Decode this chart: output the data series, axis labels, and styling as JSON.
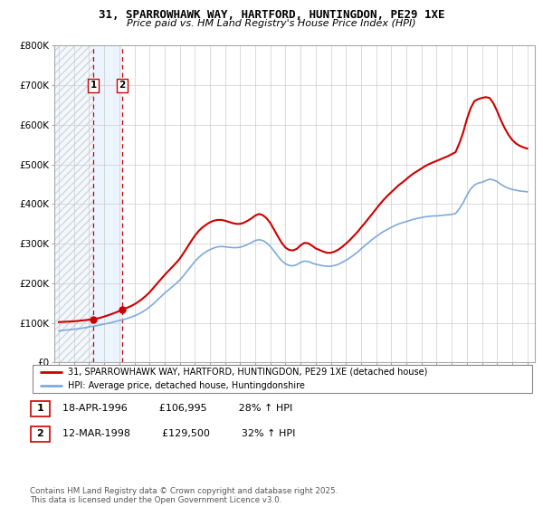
{
  "title": "31, SPARROWHAWK WAY, HARTFORD, HUNTINGDON, PE29 1XE",
  "subtitle": "Price paid vs. HM Land Registry's House Price Index (HPI)",
  "footer": "Contains HM Land Registry data © Crown copyright and database right 2025.\nThis data is licensed under the Open Government Licence v3.0.",
  "legend_line1": "31, SPARROWHAWK WAY, HARTFORD, HUNTINGDON, PE29 1XE (detached house)",
  "legend_line2": "HPI: Average price, detached house, Huntingdonshire",
  "transactions": [
    {
      "label": "1",
      "date": "18-APR-1996",
      "price": "£106,995",
      "hpi": "28% ↑ HPI",
      "x": 1996.29
    },
    {
      "label": "2",
      "date": "12-MAR-1998",
      "price": "£129,500",
      "hpi": "32% ↑ HPI",
      "x": 1998.19
    }
  ],
  "hpi_color": "#7eaadc",
  "price_color": "#cc0000",
  "transaction_color": "#cc0000",
  "ylim": [
    0,
    800000
  ],
  "yticks": [
    0,
    100000,
    200000,
    300000,
    400000,
    500000,
    600000,
    700000,
    800000
  ],
  "ytick_labels": [
    "£0",
    "£100K",
    "£200K",
    "£300K",
    "£400K",
    "£500K",
    "£600K",
    "£700K",
    "£800K"
  ],
  "xmin": 1993.7,
  "xmax": 2025.5,
  "tx1_x": 1996.29,
  "tx2_x": 1998.19,
  "hatch_end": 1996.29,
  "highlight_start": 1996.29,
  "highlight_end": 1998.19,
  "hpi_data_x": [
    1994.0,
    1994.25,
    1994.5,
    1994.75,
    1995.0,
    1995.25,
    1995.5,
    1995.75,
    1996.0,
    1996.25,
    1996.5,
    1996.75,
    1997.0,
    1997.25,
    1997.5,
    1997.75,
    1998.0,
    1998.25,
    1998.5,
    1998.75,
    1999.0,
    1999.25,
    1999.5,
    1999.75,
    2000.0,
    2000.25,
    2000.5,
    2000.75,
    2001.0,
    2001.25,
    2001.5,
    2001.75,
    2002.0,
    2002.25,
    2002.5,
    2002.75,
    2003.0,
    2003.25,
    2003.5,
    2003.75,
    2004.0,
    2004.25,
    2004.5,
    2004.75,
    2005.0,
    2005.25,
    2005.5,
    2005.75,
    2006.0,
    2006.25,
    2006.5,
    2006.75,
    2007.0,
    2007.25,
    2007.5,
    2007.75,
    2008.0,
    2008.25,
    2008.5,
    2008.75,
    2009.0,
    2009.25,
    2009.5,
    2009.75,
    2010.0,
    2010.25,
    2010.5,
    2010.75,
    2011.0,
    2011.25,
    2011.5,
    2011.75,
    2012.0,
    2012.25,
    2012.5,
    2012.75,
    2013.0,
    2013.25,
    2013.5,
    2013.75,
    2014.0,
    2014.25,
    2014.5,
    2014.75,
    2015.0,
    2015.25,
    2015.5,
    2015.75,
    2016.0,
    2016.25,
    2016.5,
    2016.75,
    2017.0,
    2017.25,
    2017.5,
    2017.75,
    2018.0,
    2018.25,
    2018.5,
    2018.75,
    2019.0,
    2019.25,
    2019.5,
    2019.75,
    2020.0,
    2020.25,
    2020.5,
    2020.75,
    2021.0,
    2021.25,
    2021.5,
    2021.75,
    2022.0,
    2022.25,
    2022.5,
    2022.75,
    2023.0,
    2023.25,
    2023.5,
    2023.75,
    2024.0,
    2024.25,
    2024.5,
    2024.75,
    2025.0
  ],
  "hpi_data_y": [
    80000,
    81000,
    82000,
    83000,
    84000,
    85000,
    86500,
    88000,
    90000,
    91500,
    93000,
    95000,
    97000,
    99000,
    101000,
    103500,
    106000,
    108000,
    111000,
    114000,
    117500,
    122000,
    127000,
    133000,
    140000,
    148000,
    157000,
    166000,
    175000,
    183000,
    191000,
    199000,
    208000,
    219000,
    231000,
    243000,
    255000,
    265000,
    273000,
    280000,
    285000,
    289000,
    292000,
    293000,
    292000,
    291000,
    290000,
    290000,
    291000,
    294000,
    298000,
    303000,
    308000,
    310000,
    308000,
    302000,
    293000,
    281000,
    268000,
    257000,
    249000,
    245000,
    244000,
    247000,
    253000,
    256000,
    255000,
    251000,
    248000,
    246000,
    244000,
    243000,
    243000,
    245000,
    248000,
    253000,
    258000,
    264000,
    271000,
    278000,
    287000,
    295000,
    303000,
    311000,
    318000,
    325000,
    331000,
    336000,
    341000,
    346000,
    350000,
    353000,
    356000,
    359000,
    362000,
    364000,
    366000,
    368000,
    369000,
    370000,
    370000,
    371000,
    372000,
    373000,
    374000,
    376000,
    388000,
    403000,
    422000,
    438000,
    448000,
    453000,
    455000,
    459000,
    463000,
    461000,
    457000,
    450000,
    444000,
    440000,
    437000,
    435000,
    433000,
    432000,
    431000
  ],
  "price_data_x": [
    1994.0,
    1994.25,
    1994.5,
    1994.75,
    1995.0,
    1995.25,
    1995.5,
    1995.75,
    1996.0,
    1996.25,
    1996.5,
    1996.75,
    1997.0,
    1997.25,
    1997.5,
    1997.75,
    1998.0,
    1998.25,
    1998.5,
    1998.75,
    1999.0,
    1999.25,
    1999.5,
    1999.75,
    2000.0,
    2000.25,
    2000.5,
    2000.75,
    2001.0,
    2001.25,
    2001.5,
    2001.75,
    2002.0,
    2002.25,
    2002.5,
    2002.75,
    2003.0,
    2003.25,
    2003.5,
    2003.75,
    2004.0,
    2004.25,
    2004.5,
    2004.75,
    2005.0,
    2005.25,
    2005.5,
    2005.75,
    2006.0,
    2006.25,
    2006.5,
    2006.75,
    2007.0,
    2007.25,
    2007.5,
    2007.75,
    2008.0,
    2008.25,
    2008.5,
    2008.75,
    2009.0,
    2009.25,
    2009.5,
    2009.75,
    2010.0,
    2010.25,
    2010.5,
    2010.75,
    2011.0,
    2011.25,
    2011.5,
    2011.75,
    2012.0,
    2012.25,
    2012.5,
    2012.75,
    2013.0,
    2013.25,
    2013.5,
    2013.75,
    2014.0,
    2014.25,
    2014.5,
    2014.75,
    2015.0,
    2015.25,
    2015.5,
    2015.75,
    2016.0,
    2016.25,
    2016.5,
    2016.75,
    2017.0,
    2017.25,
    2017.5,
    2017.75,
    2018.0,
    2018.25,
    2018.5,
    2018.75,
    2019.0,
    2019.25,
    2019.5,
    2019.75,
    2020.0,
    2020.25,
    2020.5,
    2020.75,
    2021.0,
    2021.25,
    2021.5,
    2021.75,
    2022.0,
    2022.25,
    2022.5,
    2022.75,
    2023.0,
    2023.25,
    2023.5,
    2023.75,
    2024.0,
    2024.25,
    2024.5,
    2024.75,
    2025.0
  ],
  "price_data_y": [
    102000,
    102500,
    103000,
    103500,
    104000,
    105000,
    106000,
    107000,
    108000,
    109000,
    111000,
    113000,
    116000,
    119000,
    122500,
    126000,
    130000,
    134000,
    138000,
    142000,
    147000,
    153000,
    160000,
    168000,
    177000,
    188000,
    199000,
    210000,
    221000,
    231000,
    241000,
    251000,
    262000,
    276000,
    291000,
    306000,
    320000,
    332000,
    341000,
    348000,
    354000,
    358000,
    360000,
    360000,
    358000,
    355000,
    352000,
    350000,
    350000,
    353000,
    358000,
    364000,
    371000,
    375000,
    372000,
    364000,
    352000,
    335000,
    318000,
    302000,
    290000,
    284000,
    283000,
    287000,
    296000,
    302000,
    301000,
    295000,
    288000,
    284000,
    280000,
    277000,
    277000,
    280000,
    285000,
    292000,
    300000,
    309000,
    319000,
    329000,
    341000,
    352000,
    364000,
    376000,
    388000,
    400000,
    411000,
    421000,
    430000,
    439000,
    448000,
    455000,
    463000,
    471000,
    478000,
    484000,
    490000,
    496000,
    501000,
    505000,
    509000,
    513000,
    517000,
    521000,
    526000,
    531000,
    553000,
    580000,
    614000,
    642000,
    660000,
    665000,
    668000,
    670000,
    668000,
    655000,
    635000,
    612000,
    592000,
    575000,
    562000,
    553000,
    547000,
    543000,
    540000
  ]
}
